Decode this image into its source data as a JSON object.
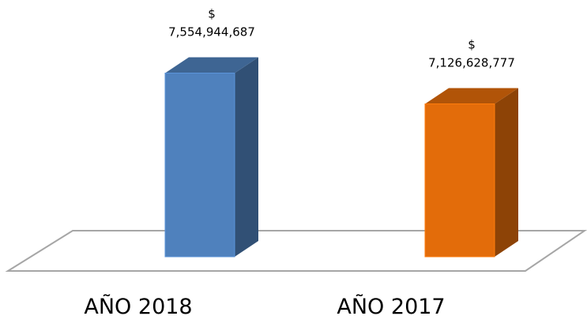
{
  "chart_data": {
    "type": "bar3d",
    "categories": [
      "AÑO 2018",
      "AÑO 2017"
    ],
    "values": [
      7554944687,
      7126628777
    ],
    "value_labels": [
      "$ 7,554,944,687",
      "$ 7,126,628,777"
    ],
    "colors": [
      "#4f81bd",
      "#e36c0a"
    ],
    "ylim": [
      5000000000,
      8000000000
    ]
  }
}
